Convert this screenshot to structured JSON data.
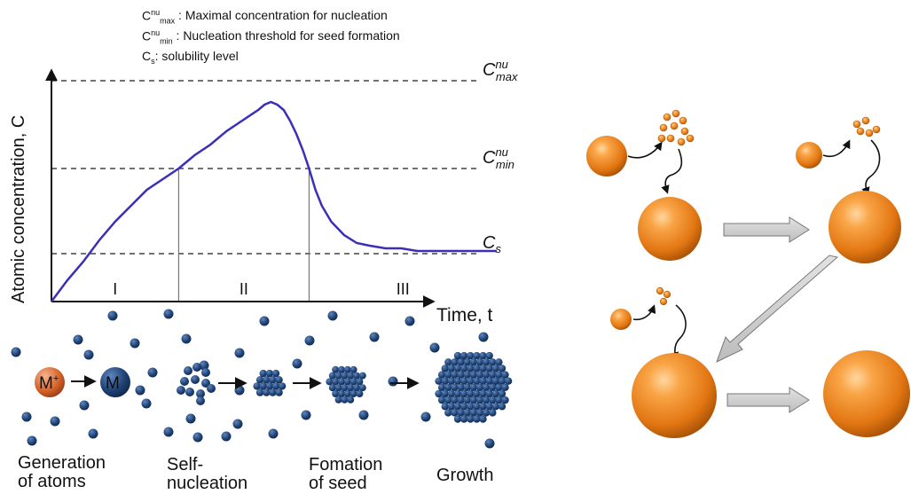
{
  "legend": {
    "max": {
      "base": "C",
      "sup": "nu",
      "sub": "max",
      "text": " : Maximal concentration for nucleation"
    },
    "min": {
      "base": "C",
      "sup": "nu",
      "sub": "min",
      "text": " : Nucleation threshold for seed formation"
    },
    "s": {
      "base": "C",
      "sub": "s",
      "text": ": solubility level"
    }
  },
  "chart_data": {
    "type": "line",
    "title": "",
    "xlabel": "Time, t",
    "ylabel": "Atomic concentration, C",
    "levels": [
      {
        "name": "C_max^nu",
        "base": "C",
        "sup": "nu",
        "sub": "max",
        "value": 0.83
      },
      {
        "name": "C_min^nu",
        "base": "C",
        "sup": "nu",
        "sub": "min",
        "value": 0.5
      },
      {
        "name": "C_s",
        "base": "C",
        "sub": "s",
        "value": 0.18
      }
    ],
    "phases": [
      "I",
      "II",
      "III"
    ],
    "phase_bounds": [
      0.4,
      0.81
    ],
    "series": [
      {
        "x": [
          0,
          0.05,
          0.1,
          0.15,
          0.2,
          0.25,
          0.3,
          0.35,
          0.4,
          0.45,
          0.5,
          0.55,
          0.6,
          0.65,
          0.67,
          0.69,
          0.71,
          0.73,
          0.75,
          0.77,
          0.79,
          0.81,
          0.83,
          0.85,
          0.88,
          0.92,
          0.96,
          1.0,
          1.05,
          1.1,
          1.15,
          1.2,
          1.25,
          1.3,
          1.35,
          1.4
        ],
        "y": [
          0,
          0.08,
          0.15,
          0.23,
          0.3,
          0.36,
          0.42,
          0.46,
          0.5,
          0.55,
          0.59,
          0.64,
          0.68,
          0.72,
          0.74,
          0.75,
          0.74,
          0.72,
          0.68,
          0.63,
          0.57,
          0.5,
          0.42,
          0.36,
          0.3,
          0.25,
          0.22,
          0.21,
          0.2,
          0.2,
          0.19,
          0.19,
          0.19,
          0.19,
          0.19,
          0.19
        ]
      }
    ],
    "grid": false
  },
  "stages": [
    {
      "line1": "Generation",
      "line2": "of atoms"
    },
    {
      "line1": "Self-",
      "line2": "nucleation"
    },
    {
      "line1": "Fomation",
      "line2": "of seed"
    },
    {
      "line1": "Growth",
      "line2": ""
    }
  ],
  "ions": {
    "ion": "M",
    "ion_sup": "+",
    "atom": "M"
  },
  "colors": {
    "curve": "#3a2fb8",
    "atom": "#1e3f6e",
    "ion": "#d5642b",
    "sphere": "#f08a1e",
    "block_arrow": "#cccccc"
  }
}
